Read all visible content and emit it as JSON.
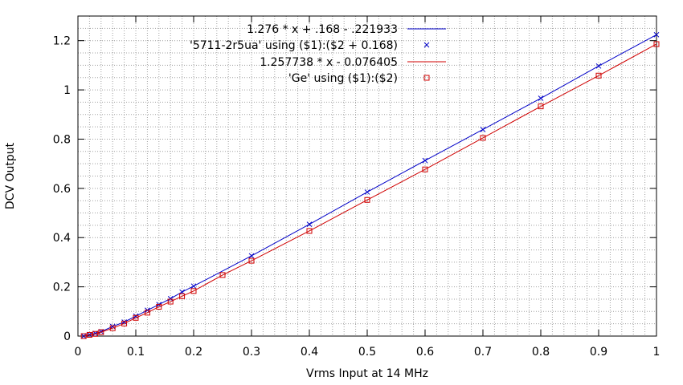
{
  "chart_data": {
    "type": "line",
    "title": "",
    "xlabel": "Vrms Input at 14 MHz",
    "ylabel": "DCV Output",
    "xlim": [
      0,
      1
    ],
    "ylim": [
      0,
      1.3
    ],
    "x_ticks": [
      "0",
      "0.1",
      "0.2",
      "0.3",
      "0.4",
      "0.5",
      "0.6",
      "0.7",
      "0.8",
      "0.9",
      "1"
    ],
    "x_tick_values": [
      0,
      0.1,
      0.2,
      0.3,
      0.4,
      0.5,
      0.6,
      0.7,
      0.8,
      0.9,
      1
    ],
    "y_ticks": [
      "0",
      "0.2",
      "0.4",
      "0.6",
      "0.8",
      "1",
      "1.2"
    ],
    "y_tick_values": [
      0,
      0.2,
      0.4,
      0.6,
      0.8,
      1,
      1.2
    ],
    "grid": true,
    "minor_grid": true,
    "legend_position": "top-right",
    "series": [
      {
        "name": "1.276 * x + .168 - .221933",
        "kind": "line",
        "color": "#0000c8",
        "x": [
          0.01,
          0.02,
          0.03,
          0.04,
          0.06,
          0.08,
          0.1,
          0.12,
          0.14,
          0.16,
          0.18,
          0.2,
          0.3,
          0.4,
          0.5,
          0.6,
          0.7,
          0.8,
          0.9,
          1.0
        ],
        "y": [
          0.0,
          0.006,
          0.011,
          0.018,
          0.039,
          0.057,
          0.081,
          0.105,
          0.128,
          0.152,
          0.179,
          0.203,
          0.326,
          0.454,
          0.585,
          0.713,
          0.839,
          0.966,
          1.097,
          1.224
        ]
      },
      {
        "name": "'5711-2r5ua' using ($1):($2 + 0.168)",
        "kind": "points",
        "marker": "x",
        "color": "#0000c8",
        "x": [
          0.01,
          0.02,
          0.03,
          0.04,
          0.06,
          0.08,
          0.1,
          0.12,
          0.14,
          0.16,
          0.18,
          0.2,
          0.3,
          0.4,
          0.5,
          0.6,
          0.7,
          0.8,
          0.9,
          1.0
        ],
        "y": [
          0.0,
          0.006,
          0.011,
          0.018,
          0.039,
          0.057,
          0.081,
          0.105,
          0.128,
          0.152,
          0.179,
          0.203,
          0.326,
          0.454,
          0.585,
          0.713,
          0.839,
          0.966,
          1.097,
          1.224
        ]
      },
      {
        "name": "1.257738 * x - 0.076405",
        "kind": "line",
        "color": "#d00000",
        "x": [
          0.01,
          0.02,
          0.03,
          0.04,
          0.06,
          0.08,
          0.1,
          0.12,
          0.14,
          0.16,
          0.18,
          0.2,
          0.25,
          0.3,
          0.4,
          0.5,
          0.6,
          0.7,
          0.8,
          0.9,
          1.0
        ],
        "y": [
          0.0,
          0.005,
          0.009,
          0.016,
          0.032,
          0.051,
          0.074,
          0.095,
          0.119,
          0.14,
          0.162,
          0.183,
          0.248,
          0.306,
          0.427,
          0.553,
          0.677,
          0.805,
          0.933,
          1.058,
          1.186
        ]
      },
      {
        "name": "'Ge' using ($1):($2)",
        "kind": "points",
        "marker": "square",
        "color": "#d00000",
        "x": [
          0.01,
          0.02,
          0.03,
          0.04,
          0.06,
          0.08,
          0.1,
          0.12,
          0.14,
          0.16,
          0.18,
          0.2,
          0.25,
          0.3,
          0.4,
          0.5,
          0.6,
          0.7,
          0.8,
          0.9,
          1.0
        ],
        "y": [
          0.0,
          0.005,
          0.009,
          0.016,
          0.032,
          0.051,
          0.074,
          0.095,
          0.119,
          0.14,
          0.162,
          0.183,
          0.248,
          0.306,
          0.427,
          0.553,
          0.677,
          0.805,
          0.933,
          1.058,
          1.186
        ]
      }
    ]
  }
}
